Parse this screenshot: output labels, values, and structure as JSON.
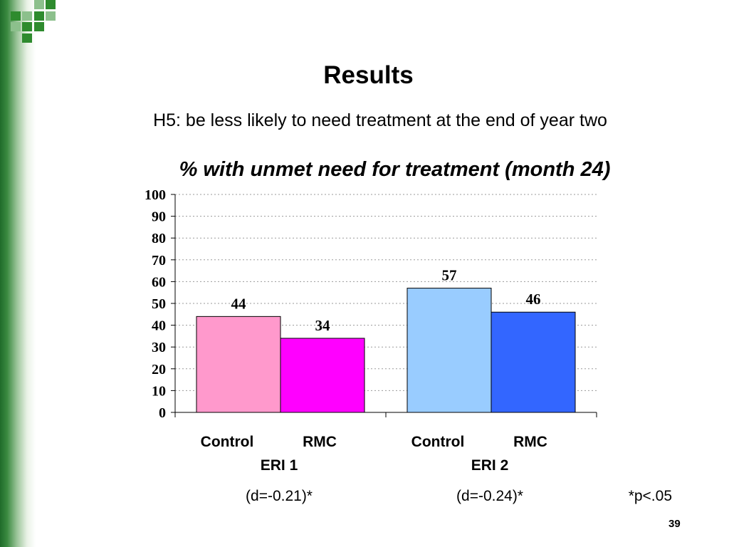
{
  "slide": {
    "title": "Results",
    "subtitle": "H5: be less likely to need treatment at the end of year two",
    "number": "39"
  },
  "chart_data": {
    "type": "bar",
    "title": "% with unmet need for treatment (month 24)",
    "ylim": [
      0,
      100
    ],
    "yticks": [
      0,
      10,
      20,
      30,
      40,
      50,
      60,
      70,
      80,
      90,
      100
    ],
    "grid": true,
    "groups": [
      {
        "name": "ERI 1",
        "effect": "(d=-0.21)*",
        "bars": [
          {
            "label": "Control",
            "value": 44,
            "color": "#ff99cc"
          },
          {
            "label": "RMC",
            "value": 34,
            "color": "#ff00ff"
          }
        ]
      },
      {
        "name": "ERI 2",
        "effect": "(d=-0.24)*",
        "bars": [
          {
            "label": "Control",
            "value": 57,
            "color": "#99ccff"
          },
          {
            "label": "RMC",
            "value": 46,
            "color": "#3366ff"
          }
        ]
      }
    ],
    "footnote": "*p<.05"
  },
  "theme": {
    "accent": "#1f6b2a",
    "logo_color": "#2e8b2e"
  }
}
